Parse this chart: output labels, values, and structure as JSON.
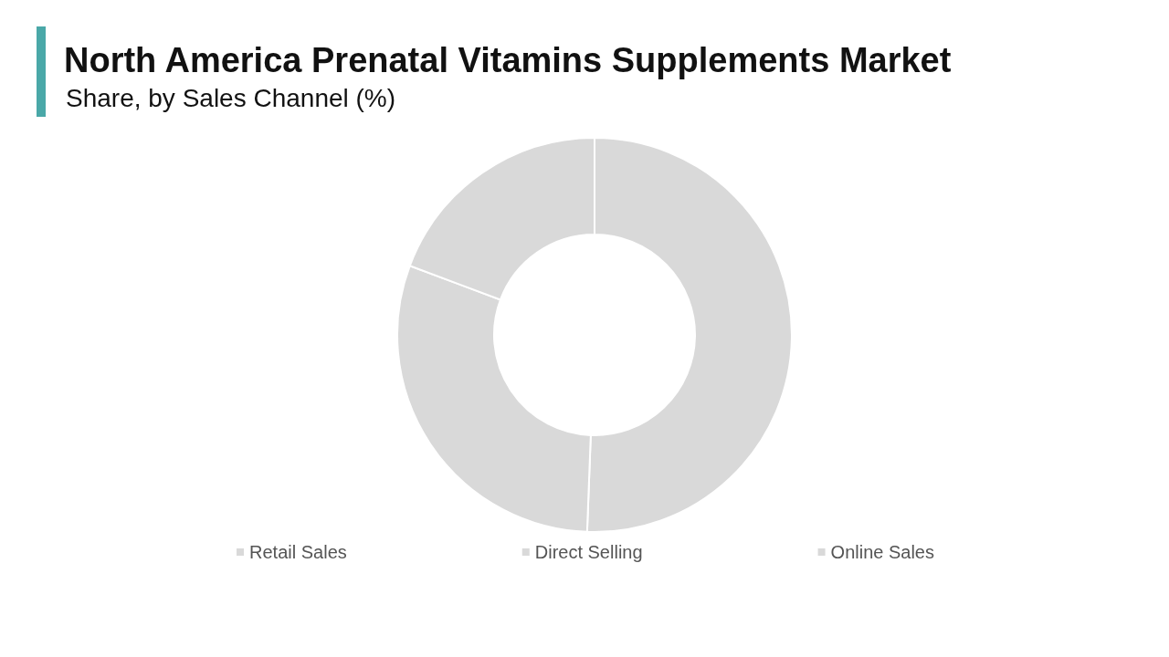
{
  "chart_data": {
    "type": "donut",
    "title": "North America Prenatal Vitamins Supplements Market",
    "subtitle": "Share, by Sales Channel (%)",
    "categories": [
      "Retail Sales",
      "Direct Selling",
      "Online Sales"
    ],
    "values": [
      50.6,
      30.1,
      19.3
    ],
    "colors": [
      "#d9d9d9",
      "#d9d9d9",
      "#d9d9d9"
    ],
    "legend": "bottom"
  }
}
